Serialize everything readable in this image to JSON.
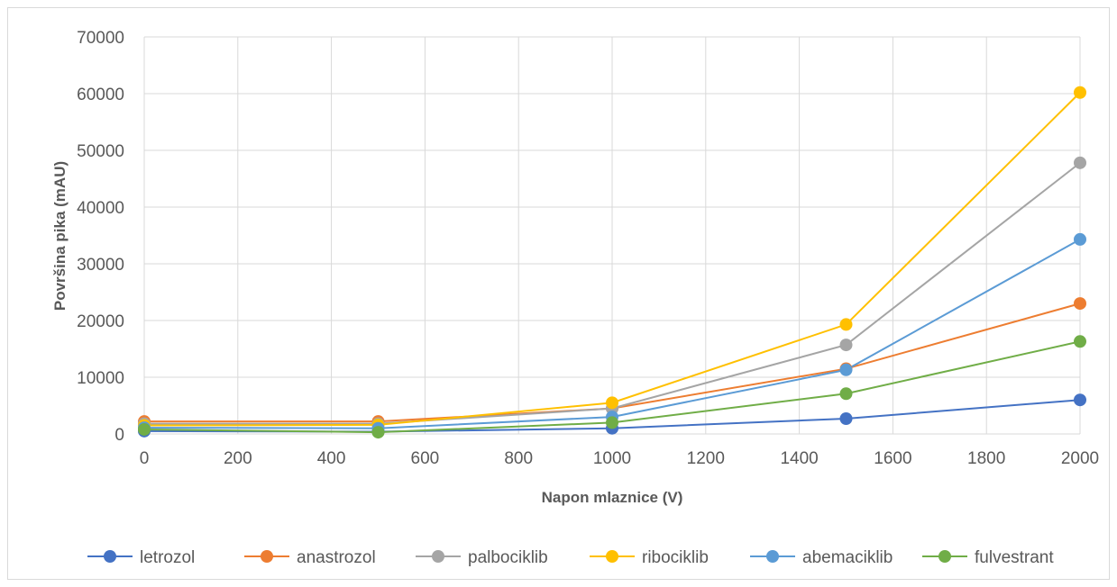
{
  "chart_data": {
    "type": "line",
    "title": "",
    "xlabel": "Napon mlaznice (V)",
    "ylabel": "Površina pika (mAU)",
    "xlim": [
      0,
      2000
    ],
    "ylim": [
      0,
      70000
    ],
    "xticks": [
      0,
      200,
      400,
      600,
      800,
      1000,
      1200,
      1400,
      1600,
      1800,
      2000
    ],
    "yticks": [
      0,
      10000,
      20000,
      30000,
      40000,
      50000,
      60000,
      70000
    ],
    "grid": true,
    "legend_position": "bottom",
    "x": [
      0,
      500,
      1000,
      1500,
      2000
    ],
    "series": [
      {
        "name": "letrozol",
        "color": "#4472c4",
        "values": [
          500,
          400,
          1000,
          2700,
          6000
        ]
      },
      {
        "name": "anastrozol",
        "color": "#ed7d31",
        "values": [
          2200,
          2200,
          4500,
          11500,
          23000
        ]
      },
      {
        "name": "palbociklib",
        "color": "#a5a5a5",
        "values": [
          1800,
          1800,
          4500,
          15700,
          47800
        ]
      },
      {
        "name": "ribociklib",
        "color": "#ffc000",
        "values": [
          1500,
          1600,
          5500,
          19300,
          60200
        ]
      },
      {
        "name": "abemaciklib",
        "color": "#5b9bd5",
        "values": [
          1100,
          1000,
          3000,
          11300,
          34300
        ]
      },
      {
        "name": "fulvestrant",
        "color": "#70ad47",
        "values": [
          800,
          300,
          2000,
          7100,
          16300
        ]
      }
    ]
  }
}
